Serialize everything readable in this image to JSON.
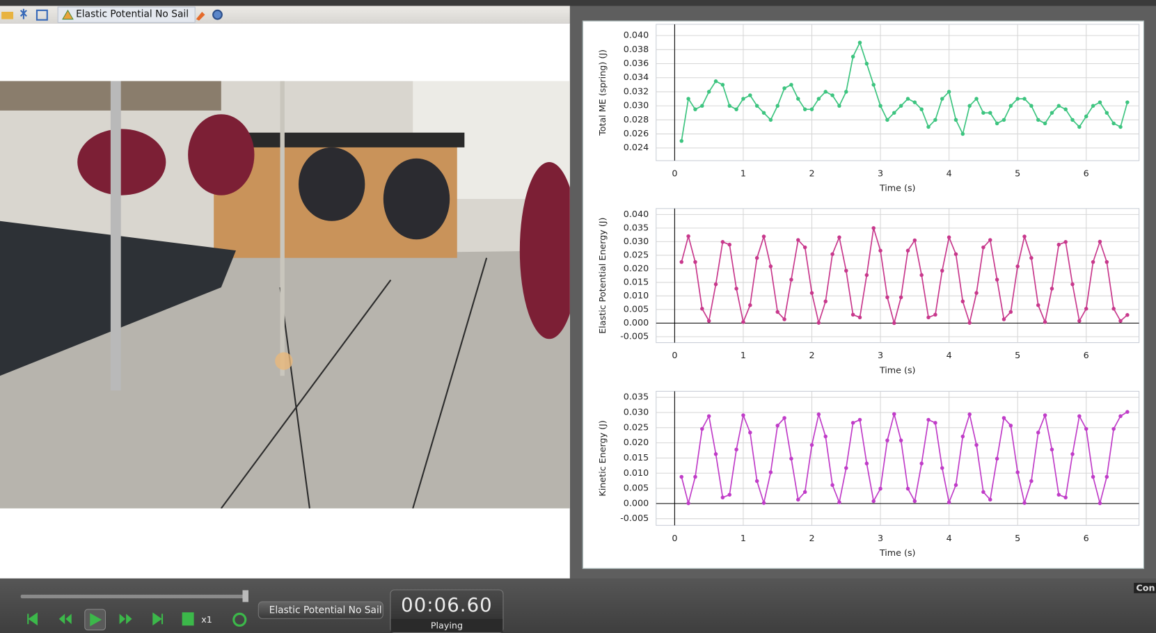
{
  "toolbar": {
    "tab_title": "Elastic Potential No Sail"
  },
  "chart_data": [
    {
      "type": "line",
      "ylabel": "Total ME (spring) (J)",
      "xlabel": "Time (s)",
      "color": "#3cc47f",
      "markers": true,
      "grid": true,
      "x": [
        0.1,
        0.2,
        0.3,
        0.4,
        0.5,
        0.6,
        0.7,
        0.8,
        0.9,
        1.0,
        1.1,
        1.2,
        1.3,
        1.4,
        1.5,
        1.6,
        1.7,
        1.8,
        1.9,
        2.0,
        2.1,
        2.2,
        2.3,
        2.4,
        2.5,
        2.6,
        2.7,
        2.8,
        2.9,
        3.0,
        3.1,
        3.2,
        3.3,
        3.4,
        3.5,
        3.6,
        3.7,
        3.8,
        3.9,
        4.0,
        4.1,
        4.2,
        4.3,
        4.4,
        4.5,
        4.6,
        4.7,
        4.8,
        4.9,
        5.0,
        5.1,
        5.2,
        5.3,
        5.4,
        5.5,
        5.6,
        5.7,
        5.8,
        5.9,
        6.0,
        6.1,
        6.2,
        6.3,
        6.4,
        6.5,
        6.6
      ],
      "values": [
        0.025,
        0.031,
        0.0295,
        0.03,
        0.032,
        0.0335,
        0.033,
        0.03,
        0.0295,
        0.031,
        0.0315,
        0.03,
        0.029,
        0.028,
        0.03,
        0.0325,
        0.033,
        0.031,
        0.0295,
        0.0295,
        0.031,
        0.032,
        0.0315,
        0.03,
        0.032,
        0.037,
        0.039,
        0.036,
        0.033,
        0.03,
        0.028,
        0.029,
        0.03,
        0.031,
        0.0305,
        0.0295,
        0.027,
        0.028,
        0.031,
        0.032,
        0.028,
        0.026,
        0.03,
        0.031,
        0.029,
        0.029,
        0.0275,
        0.028,
        0.03,
        0.031,
        0.031,
        0.03,
        0.028,
        0.0275,
        0.029,
        0.03,
        0.0295,
        0.028,
        0.027,
        0.0285,
        0.03,
        0.0305,
        0.029,
        0.0275,
        0.027,
        0.0305
      ],
      "xlim": [
        -0.27,
        6.77
      ],
      "xticks": [
        0,
        1,
        2,
        3,
        4,
        5,
        6
      ],
      "ylim": [
        0.0222,
        0.0416
      ],
      "yticks": [
        0.024,
        0.026,
        0.028,
        {
          "value": 0.03,
          "label": "0.030"
        },
        0.032,
        0.034,
        0.036,
        0.038,
        {
          "value": 0.04,
          "label": "0.040"
        }
      ]
    },
    {
      "type": "line",
      "ylabel": "Elastic Potential Energy (J)",
      "xlabel": "Time (s)",
      "color": "#c8388c",
      "markers": true,
      "grid": true,
      "x": [
        0.1,
        0.2,
        0.3,
        0.4,
        0.5,
        0.6,
        0.7,
        0.8,
        0.9,
        1.0,
        1.1,
        1.2,
        1.3,
        1.4,
        1.5,
        1.6,
        1.7,
        1.8,
        1.9,
        2.0,
        2.1,
        2.2,
        2.3,
        2.4,
        2.5,
        2.6,
        2.7,
        2.8,
        2.9,
        3.0,
        3.1,
        3.2,
        3.3,
        3.4,
        3.5,
        3.6,
        3.7,
        3.8,
        3.9,
        4.0,
        4.1,
        4.2,
        4.3,
        4.4,
        4.5,
        4.6,
        4.7,
        4.8,
        4.9,
        5.0,
        5.1,
        5.2,
        5.3,
        5.4,
        5.5,
        5.6,
        5.7,
        5.8,
        5.9,
        6.0,
        6.1,
        6.2,
        6.3,
        6.4,
        6.5,
        6.6
      ],
      "values": [
        0.0225,
        0.032,
        0.0225,
        0.0053,
        0.0008,
        0.0143,
        0.0299,
        0.0289,
        0.0127,
        0.0004,
        0.0066,
        0.024,
        0.0319,
        0.0209,
        0.0041,
        0.0014,
        0.016,
        0.0306,
        0.0279,
        0.0111,
        0.0001,
        0.008,
        0.0254,
        0.0316,
        0.0193,
        0.0031,
        0.0021,
        0.0177,
        0.035,
        0.0267,
        0.0095,
        0,
        0.0095,
        0.0267,
        0.0305,
        0.0177,
        0.0021,
        0.0031,
        0.0193,
        0.0316,
        0.0254,
        0.008,
        0.0001,
        0.0111,
        0.0279,
        0.0306,
        0.016,
        0.0014,
        0.0041,
        0.0209,
        0.0319,
        0.024,
        0.0066,
        0.0004,
        0.0127,
        0.0289,
        0.0299,
        0.0143,
        0.0008,
        0.0053,
        0.0225,
        0.03,
        0.0225,
        0.0053,
        0.0008,
        0.003
      ],
      "xlim": [
        -0.27,
        6.77
      ],
      "xticks": [
        0,
        1,
        2,
        3,
        4,
        5,
        6
      ],
      "ylim": [
        -0.0072,
        0.0422
      ],
      "yticks": [
        -0.005,
        {
          "value": 0,
          "label": "0.000"
        },
        0.005,
        {
          "value": 0.01,
          "label": "0.010"
        },
        0.015,
        {
          "value": 0.02,
          "label": "0.020"
        },
        0.025,
        {
          "value": 0.03,
          "label": "0.030"
        },
        0.035,
        {
          "value": 0.04,
          "label": "0.040"
        }
      ]
    },
    {
      "type": "line",
      "ylabel": "Kinetic Energy (J)",
      "xlabel": "Time (s)",
      "color": "#c03cc8",
      "markers": true,
      "grid": true,
      "x": [
        0.1,
        0.2,
        0.3,
        0.4,
        0.5,
        0.6,
        0.7,
        0.8,
        0.9,
        1.0,
        1.1,
        1.2,
        1.3,
        1.4,
        1.5,
        1.6,
        1.7,
        1.8,
        1.9,
        2.0,
        2.1,
        2.2,
        2.3,
        2.4,
        2.5,
        2.6,
        2.7,
        2.8,
        2.9,
        3.0,
        3.1,
        3.2,
        3.3,
        3.4,
        3.5,
        3.6,
        3.7,
        3.8,
        3.9,
        4.0,
        4.1,
        4.2,
        4.3,
        4.4,
        4.5,
        4.6,
        4.7,
        4.8,
        4.9,
        5.0,
        5.1,
        5.2,
        5.3,
        5.4,
        5.5,
        5.6,
        5.7,
        5.8,
        5.9,
        6.0,
        6.1,
        6.2,
        6.3,
        6.4,
        6.5,
        6.6
      ],
      "values": [
        0.0088,
        0.0001,
        0.0088,
        0.0246,
        0.0288,
        0.0163,
        0.002,
        0.0029,
        0.0178,
        0.0291,
        0.0234,
        0.0074,
        0.0002,
        0.0103,
        0.0257,
        0.0282,
        0.0148,
        0.0013,
        0.0038,
        0.0193,
        0.0294,
        0.0221,
        0.0061,
        0.0004,
        0.0117,
        0.0266,
        0.0276,
        0.0132,
        0.0008,
        0.0049,
        0.0208,
        0.0295,
        0.0208,
        0.0049,
        0.0008,
        0.0132,
        0.0276,
        0.0266,
        0.0117,
        0.0004,
        0.0061,
        0.0221,
        0.0294,
        0.0193,
        0.0038,
        0.0013,
        0.0148,
        0.0282,
        0.0257,
        0.0103,
        0.0002,
        0.0074,
        0.0234,
        0.0291,
        0.0178,
        0.0029,
        0.002,
        0.0163,
        0.0288,
        0.0246,
        0.0088,
        0.0001,
        0.0088,
        0.0246,
        0.0288,
        0.0302
      ],
      "xlim": [
        -0.27,
        6.77
      ],
      "xticks": [
        0,
        1,
        2,
        3,
        4,
        5,
        6
      ],
      "ylim": [
        -0.0072,
        0.037
      ],
      "yticks": [
        -0.005,
        {
          "value": 0,
          "label": "0.000"
        },
        0.005,
        {
          "value": 0.01,
          "label": "0.010"
        },
        0.015,
        {
          "value": 0.02,
          "label": "0.020"
        },
        0.025,
        {
          "value": 0.03,
          "label": "0.030"
        },
        0.035
      ]
    }
  ],
  "player": {
    "clip_menu": "Elastic Potential No Sail",
    "speed": "x1",
    "time": "00:06.60",
    "status": "Playing",
    "side_label": "Con"
  }
}
